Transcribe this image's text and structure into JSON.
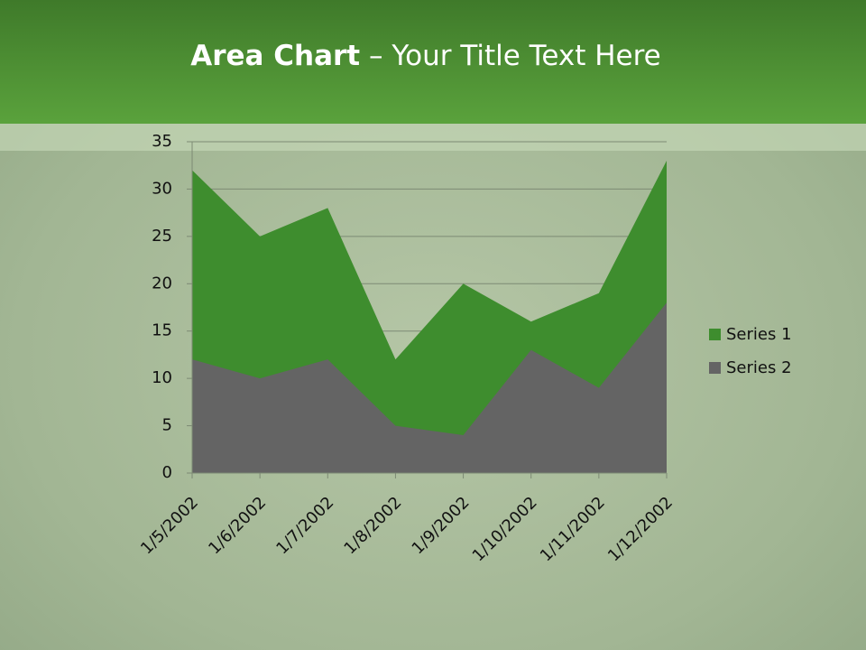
{
  "chart_data": {
    "type": "area",
    "title": [
      "Area Chart",
      "– Your Title Text Here"
    ],
    "categories": [
      "1/5/2002",
      "1/6/2002",
      "1/7/2002",
      "1/8/2002",
      "1/9/2002",
      "1/10/2002",
      "1/11/2002",
      "1/12/2002"
    ],
    "series": [
      {
        "name": "Series 1",
        "color": "#3e8d2e",
        "values": [
          32,
          25,
          28,
          12,
          20,
          16,
          19,
          33
        ]
      },
      {
        "name": "Series 2",
        "color": "#646464",
        "values": [
          12,
          10,
          12,
          5,
          4,
          13,
          9,
          18
        ]
      }
    ],
    "ylim": [
      0,
      35
    ],
    "yticks": [
      0,
      5,
      10,
      15,
      20,
      25,
      30,
      35
    ],
    "grid": true,
    "legend": "right"
  }
}
